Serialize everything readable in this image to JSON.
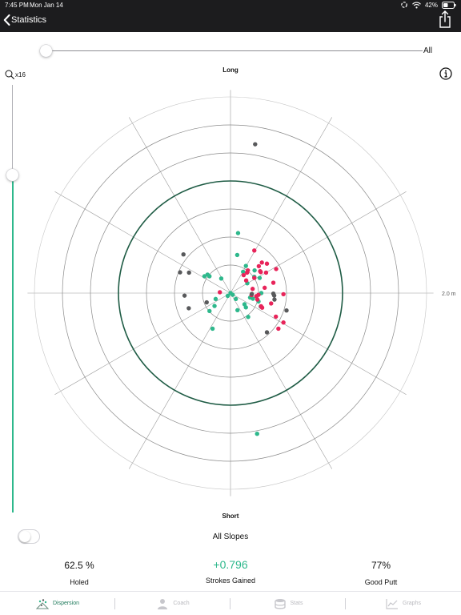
{
  "status_bar": {
    "time": "7:45 PM",
    "date": "Mon Jan 14",
    "battery": "42%"
  },
  "nav": {
    "back_label": "Statistics"
  },
  "filter": {
    "value_label": "All",
    "position": 0.0
  },
  "zoom": {
    "label": "x16",
    "level": 0.2
  },
  "chart_data": {
    "type": "scatter",
    "labels": {
      "top": "Long",
      "bottom": "Short",
      "right": "2.0 m"
    },
    "rings": 7,
    "highlight_ring": 4,
    "spokes": 12,
    "extent": 7,
    "series": [
      {
        "color": "#2eb88c",
        "points": [
          [
            0,
            0
          ],
          [
            -0.33,
            0.52
          ],
          [
            0.27,
            2.14
          ],
          [
            0.24,
            1.36
          ],
          [
            0.55,
            0.97
          ],
          [
            0.85,
            0.58
          ],
          [
            -0.93,
            0.6
          ],
          [
            -0.75,
            0.6
          ],
          [
            -0.82,
            0.66
          ],
          [
            -0.1,
            -0.1
          ],
          [
            -0.53,
            -0.21
          ],
          [
            -0.57,
            -0.46
          ],
          [
            -0.75,
            -0.64
          ],
          [
            -0.64,
            -1.27
          ],
          [
            0.08,
            -0.06
          ],
          [
            0.19,
            -0.21
          ],
          [
            0.55,
            -0.51
          ],
          [
            0.25,
            -0.61
          ],
          [
            0.45,
            0.76
          ],
          [
            1.04,
            0.54
          ],
          [
            1.1,
            0
          ],
          [
            1.08,
            -0.48
          ],
          [
            0.7,
            -0.16
          ],
          [
            0.5,
            -0.4
          ],
          [
            1.0,
            -0.3
          ],
          [
            0.8,
            -0.2
          ],
          [
            0.63,
            -0.85
          ],
          [
            0.95,
            -5.02
          ],
          [
            0.86,
            0.81
          ],
          [
            0.6,
            0.35
          ]
        ]
      },
      {
        "color": "#e8245a",
        "points": [
          [
            -0.38,
            0.03
          ],
          [
            0.79,
            0.15
          ],
          [
            0.59,
            0.73
          ],
          [
            0.47,
            0.64
          ],
          [
            0.62,
            0.81
          ],
          [
            1.06,
            0.78
          ],
          [
            1.01,
            0.96
          ],
          [
            1.12,
            1.09
          ],
          [
            0.85,
            1.52
          ],
          [
            1.63,
            0.86
          ],
          [
            0.92,
            -0.11
          ],
          [
            0.96,
            -0.23
          ],
          [
            0.75,
            -0.07
          ],
          [
            1.09,
            -0.47
          ],
          [
            1.13,
            -0.52
          ],
          [
            1.45,
            -0.37
          ],
          [
            1.3,
            1.05
          ],
          [
            1.53,
            0.37
          ],
          [
            1.62,
            -0.84
          ],
          [
            1.89,
            -0.04
          ],
          [
            1.89,
            -1.05
          ],
          [
            1.71,
            -1.27
          ],
          [
            0.85,
            0.54
          ],
          [
            0.56,
            0.45
          ],
          [
            1.0,
            -0.06
          ],
          [
            1.22,
            0.19
          ],
          [
            1.08,
            0.75
          ],
          [
            1.27,
            0.73
          ]
        ]
      },
      {
        "color": "#58595b",
        "points": [
          [
            0.88,
            5.31
          ],
          [
            -1.48,
            0.73
          ],
          [
            -1.8,
            0.74
          ],
          [
            -1.49,
            -0.54
          ],
          [
            -1.64,
            -0.09
          ],
          [
            -0.85,
            -0.33
          ],
          [
            -1.68,
            1.38
          ],
          [
            1.3,
            -1.4
          ],
          [
            2.0,
            -0.62
          ],
          [
            1.53,
            -0.02
          ],
          [
            0.76,
            -0.03
          ],
          [
            1.56,
            -0.09
          ],
          [
            1.57,
            -0.23
          ]
        ]
      }
    ]
  },
  "slopes": {
    "label": "All Slopes",
    "enabled": false
  },
  "stats": [
    {
      "value": "62.5 %",
      "label": "Holed"
    },
    {
      "value": "+0.796",
      "label": "Strokes Gained"
    },
    {
      "value": "77%",
      "label": "Good Putt"
    }
  ],
  "tabs": [
    {
      "label": "Dispersion",
      "icon": "dispersion-icon",
      "active": true
    },
    {
      "label": "Coach",
      "icon": "coach-icon",
      "active": false
    },
    {
      "label": "Stats",
      "icon": "stats-icon",
      "active": false
    },
    {
      "label": "Graphs",
      "icon": "graphs-icon",
      "active": false
    }
  ],
  "colors": {
    "accent": "#2eb88c",
    "highlight_ring": "#1f5c45",
    "miss": "#e8245a",
    "other": "#58595b"
  }
}
